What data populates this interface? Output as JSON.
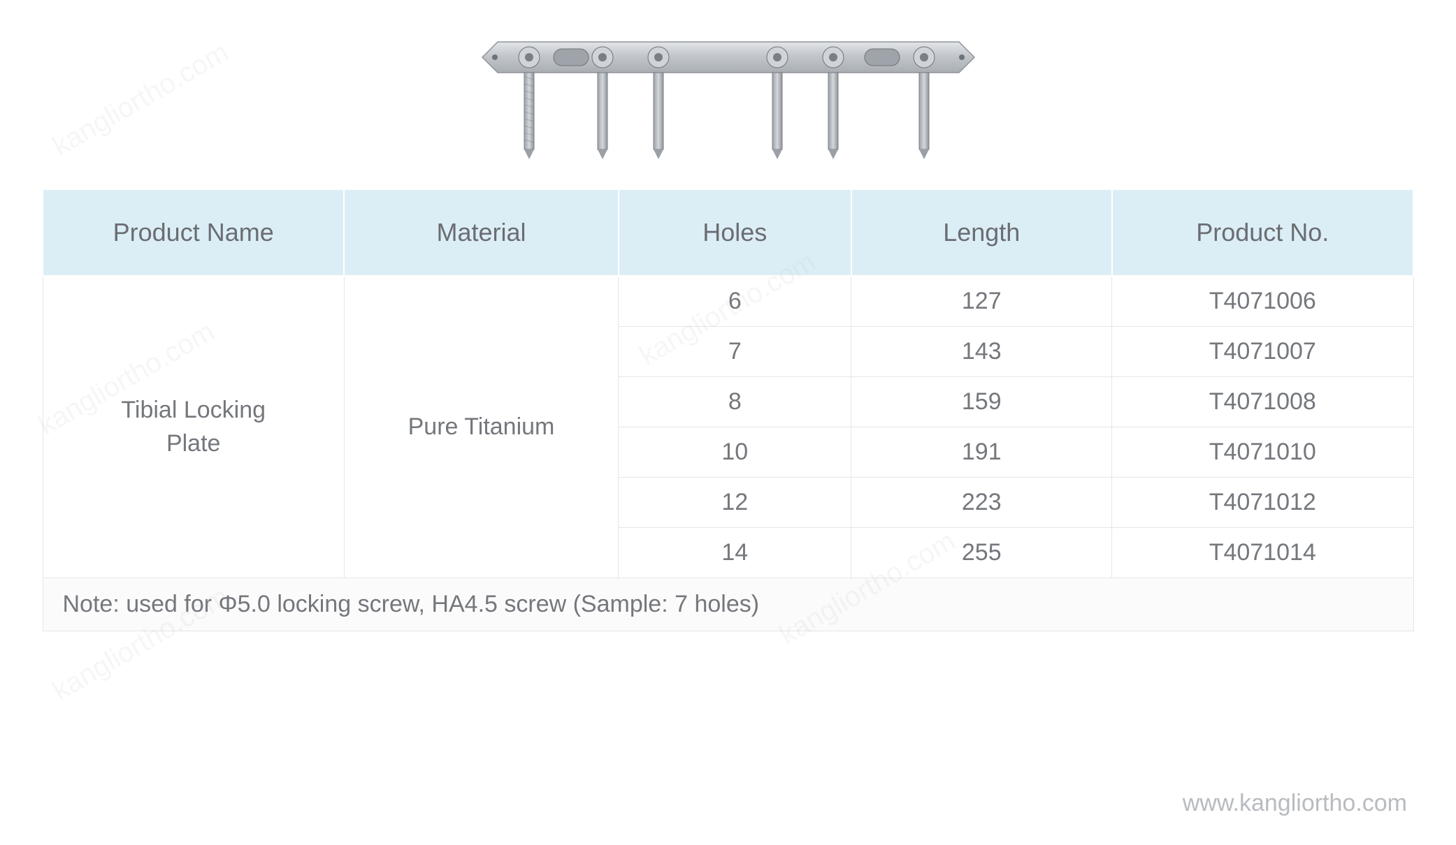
{
  "image": {
    "alt": "tibial-locking-plate-render",
    "plate_fill": "#c7cbd0",
    "plate_stroke": "#8f949a",
    "screw_fill": "#b7bcc2",
    "screw_stroke": "#7c8187"
  },
  "table": {
    "header_bg": "#dceef5",
    "header_text_color": "#6a6d72",
    "cell_text_color": "#74777c",
    "border_color": "#e6e6e6",
    "columns": [
      "Product Name",
      "Material",
      "Holes",
      "Length",
      "Product No."
    ],
    "product_name": "Tibial Locking Plate",
    "material": "Pure Titanium",
    "rows": [
      {
        "holes": "6",
        "length": "127",
        "product_no": "T4071006"
      },
      {
        "holes": "7",
        "length": "143",
        "product_no": "T4071007"
      },
      {
        "holes": "8",
        "length": "159",
        "product_no": "T4071008"
      },
      {
        "holes": "10",
        "length": "191",
        "product_no": "T4071010"
      },
      {
        "holes": "12",
        "length": "223",
        "product_no": "T4071012"
      },
      {
        "holes": "14",
        "length": "255",
        "product_no": "T4071014"
      }
    ],
    "note": "Note: used for Φ5.0 locking screw, HA4.5 screw (Sample: 7 holes)"
  },
  "footer_url": "www.kangliortho.com",
  "watermark_text": "kangliortho.com"
}
